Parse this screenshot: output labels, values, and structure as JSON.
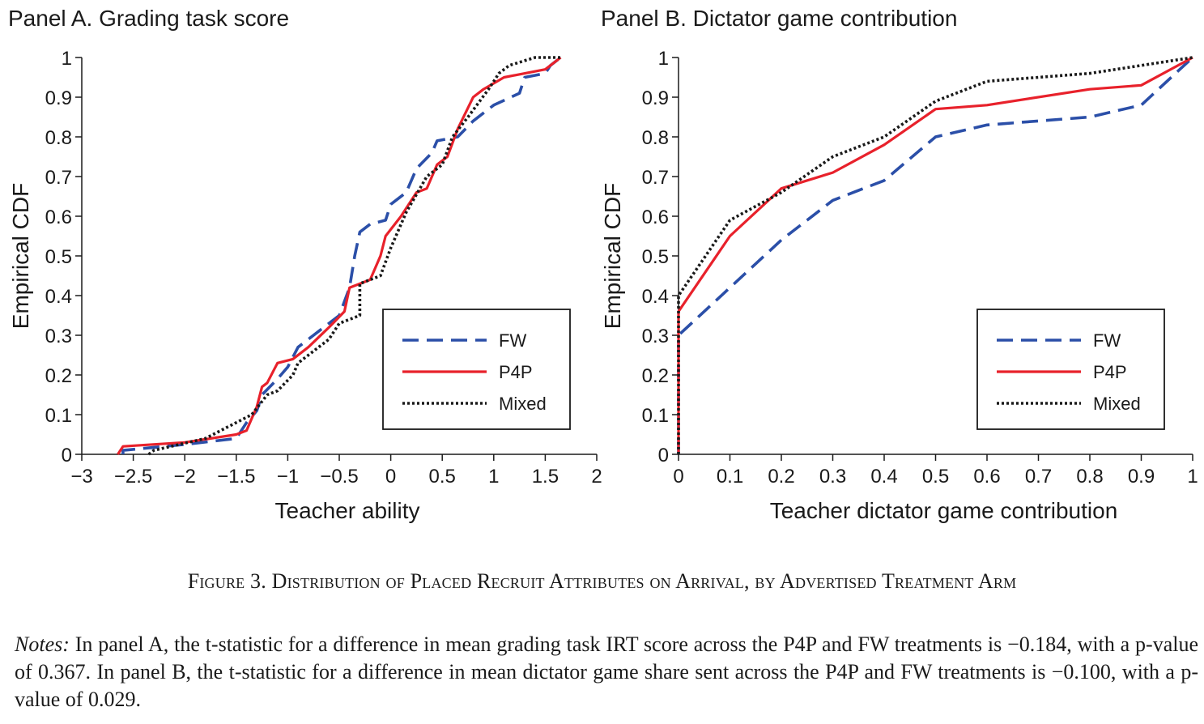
{
  "caption": "Figure 3. Distribution of Placed Recruit Attributes on Arrival, by Advertised Treatment Arm",
  "notes": {
    "label": "Notes:",
    "text": "In panel A, the t-statistic for a difference in mean grading task IRT score across the P4P and FW treatments is −0.184, with a p-value of 0.367. In panel B, the t-statistic for a difference in mean dictator game share sent across the P4P and FW treatments is −0.100, with a p-value of 0.029."
  },
  "colors": {
    "FW": "#2b4fa8",
    "P4P": "#e8212b",
    "Mixed": "#1a1a1a"
  },
  "chart_data": [
    {
      "type": "line",
      "title": "Panel A. Grading task score",
      "xlabel": "Teacher ability",
      "ylabel": "Empirical CDF",
      "xlim": [
        -3,
        2
      ],
      "ylim": [
        0,
        1
      ],
      "xticks": [
        -3,
        -2.5,
        -2,
        -1.5,
        -1,
        -0.5,
        0,
        0.5,
        1,
        1.5,
        2
      ],
      "xtick_labels": [
        "−3",
        "−2.5",
        "−2",
        "−1.5",
        "−1",
        "−0.5",
        "0",
        "0.5",
        "1",
        "1.5",
        "2"
      ],
      "yticks": [
        0,
        0.1,
        0.2,
        0.3,
        0.4,
        0.5,
        0.6,
        0.7,
        0.8,
        0.9,
        1
      ],
      "ytick_labels": [
        "0",
        "0.1",
        "0.2",
        "0.3",
        "0.4",
        "0.5",
        "0.6",
        "0.7",
        "0.8",
        "0.9",
        "1"
      ],
      "grid": false,
      "legend_position": "bottom-right",
      "series": [
        {
          "name": "FW",
          "style": "dashed",
          "points": [
            [
              -2.6,
              0
            ],
            [
              -2.6,
              0.01
            ],
            [
              -2.0,
              0.025
            ],
            [
              -1.5,
              0.04
            ],
            [
              -1.4,
              0.08
            ],
            [
              -1.3,
              0.11
            ],
            [
              -1.25,
              0.15
            ],
            [
              -1.1,
              0.19
            ],
            [
              -1.0,
              0.22
            ],
            [
              -0.9,
              0.27
            ],
            [
              -0.8,
              0.29
            ],
            [
              -0.6,
              0.33
            ],
            [
              -0.5,
              0.35
            ],
            [
              -0.4,
              0.42
            ],
            [
              -0.35,
              0.5
            ],
            [
              -0.3,
              0.56
            ],
            [
              -0.2,
              0.58
            ],
            [
              -0.05,
              0.59
            ],
            [
              0,
              0.63
            ],
            [
              0.15,
              0.66
            ],
            [
              0.25,
              0.72
            ],
            [
              0.4,
              0.76
            ],
            [
              0.45,
              0.79
            ],
            [
              0.65,
              0.8
            ],
            [
              0.8,
              0.84
            ],
            [
              1.0,
              0.88
            ],
            [
              1.25,
              0.91
            ],
            [
              1.3,
              0.95
            ],
            [
              1.5,
              0.96
            ],
            [
              1.55,
              0.98
            ],
            [
              1.65,
              1.0
            ]
          ]
        },
        {
          "name": "P4P",
          "style": "solid",
          "points": [
            [
              -2.65,
              0
            ],
            [
              -2.6,
              0.02
            ],
            [
              -2.0,
              0.03
            ],
            [
              -1.5,
              0.05
            ],
            [
              -1.4,
              0.06
            ],
            [
              -1.3,
              0.12
            ],
            [
              -1.25,
              0.17
            ],
            [
              -1.2,
              0.18
            ],
            [
              -1.1,
              0.23
            ],
            [
              -0.95,
              0.24
            ],
            [
              -0.8,
              0.27
            ],
            [
              -0.6,
              0.32
            ],
            [
              -0.45,
              0.36
            ],
            [
              -0.4,
              0.42
            ],
            [
              -0.2,
              0.44
            ],
            [
              -0.1,
              0.5
            ],
            [
              -0.05,
              0.55
            ],
            [
              0.1,
              0.6
            ],
            [
              0.25,
              0.66
            ],
            [
              0.35,
              0.67
            ],
            [
              0.45,
              0.73
            ],
            [
              0.55,
              0.75
            ],
            [
              0.65,
              0.82
            ],
            [
              0.8,
              0.9
            ],
            [
              0.9,
              0.92
            ],
            [
              1.1,
              0.95
            ],
            [
              1.5,
              0.97
            ],
            [
              1.65,
              1.0
            ]
          ]
        },
        {
          "name": "Mixed",
          "style": "dotted",
          "points": [
            [
              -2.35,
              0
            ],
            [
              -2.3,
              0.01
            ],
            [
              -1.8,
              0.04
            ],
            [
              -1.5,
              0.08
            ],
            [
              -1.35,
              0.1
            ],
            [
              -1.2,
              0.15
            ],
            [
              -1.1,
              0.16
            ],
            [
              -0.95,
              0.2
            ],
            [
              -0.9,
              0.23
            ],
            [
              -0.6,
              0.29
            ],
            [
              -0.5,
              0.33
            ],
            [
              -0.3,
              0.35
            ],
            [
              -0.3,
              0.43
            ],
            [
              -0.1,
              0.45
            ],
            [
              0,
              0.52
            ],
            [
              0.15,
              0.61
            ],
            [
              0.35,
              0.7
            ],
            [
              0.5,
              0.73
            ],
            [
              0.6,
              0.8
            ],
            [
              0.75,
              0.85
            ],
            [
              0.95,
              0.92
            ],
            [
              1.05,
              0.96
            ],
            [
              1.15,
              0.98
            ],
            [
              1.4,
              1.0
            ],
            [
              1.65,
              1.0
            ]
          ]
        }
      ]
    },
    {
      "type": "line",
      "title": "Panel B. Dictator game contribution",
      "xlabel": "Teacher dictator game contribution",
      "ylabel": "Empirical CDF",
      "xlim": [
        0,
        1
      ],
      "ylim": [
        0,
        1
      ],
      "xticks": [
        0,
        0.1,
        0.2,
        0.3,
        0.4,
        0.5,
        0.6,
        0.7,
        0.8,
        0.9,
        1
      ],
      "xtick_labels": [
        "0",
        "0.1",
        "0.2",
        "0.3",
        "0.4",
        "0.5",
        "0.6",
        "0.7",
        "0.8",
        "0.9",
        "1"
      ],
      "yticks": [
        0,
        0.1,
        0.2,
        0.3,
        0.4,
        0.5,
        0.6,
        0.7,
        0.8,
        0.9,
        1
      ],
      "ytick_labels": [
        "0",
        "0.1",
        "0.2",
        "0.3",
        "0.4",
        "0.5",
        "0.6",
        "0.7",
        "0.8",
        "0.9",
        "1"
      ],
      "grid": false,
      "legend_position": "bottom-right",
      "series": [
        {
          "name": "FW",
          "style": "dashed",
          "points": [
            [
              0,
              0
            ],
            [
              0,
              0.3
            ],
            [
              0.1,
              0.42
            ],
            [
              0.2,
              0.54
            ],
            [
              0.3,
              0.64
            ],
            [
              0.4,
              0.69
            ],
            [
              0.5,
              0.8
            ],
            [
              0.6,
              0.83
            ],
            [
              0.8,
              0.85
            ],
            [
              0.9,
              0.88
            ],
            [
              1.0,
              1.0
            ]
          ]
        },
        {
          "name": "P4P",
          "style": "solid",
          "points": [
            [
              0,
              0
            ],
            [
              0,
              0.36
            ],
            [
              0.1,
              0.55
            ],
            [
              0.2,
              0.67
            ],
            [
              0.3,
              0.71
            ],
            [
              0.4,
              0.78
            ],
            [
              0.5,
              0.87
            ],
            [
              0.6,
              0.88
            ],
            [
              0.8,
              0.92
            ],
            [
              0.9,
              0.93
            ],
            [
              1.0,
              1.0
            ]
          ]
        },
        {
          "name": "Mixed",
          "style": "dotted",
          "points": [
            [
              0,
              0
            ],
            [
              0,
              0.4
            ],
            [
              0.1,
              0.59
            ],
            [
              0.2,
              0.66
            ],
            [
              0.3,
              0.75
            ],
            [
              0.4,
              0.8
            ],
            [
              0.5,
              0.89
            ],
            [
              0.6,
              0.94
            ],
            [
              0.8,
              0.96
            ],
            [
              0.9,
              0.98
            ],
            [
              1.0,
              1.0
            ]
          ]
        }
      ]
    }
  ]
}
